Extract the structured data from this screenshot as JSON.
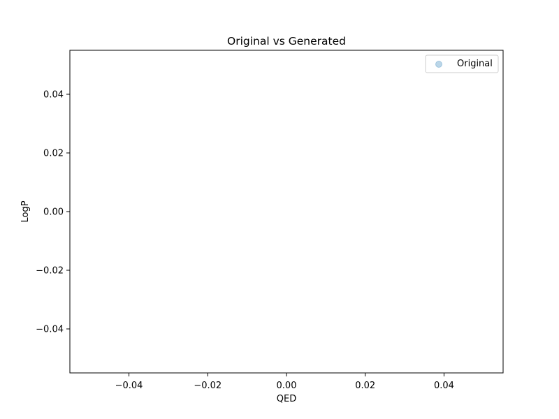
{
  "chart_data": {
    "type": "scatter",
    "title": "Original vs Generated",
    "xlabel": "QED",
    "ylabel": "LogP",
    "xlim": [
      -0.055,
      0.055
    ],
    "ylim": [
      -0.055,
      0.055
    ],
    "xticks": [
      "−0.04",
      "−0.02",
      "0.00",
      "0.02",
      "0.04"
    ],
    "xtick_values": [
      -0.04,
      -0.02,
      0.0,
      0.02,
      0.04
    ],
    "yticks": [
      "−0.04",
      "−0.02",
      "0.00",
      "0.02",
      "0.04"
    ],
    "ytick_values": [
      -0.04,
      -0.02,
      0.0,
      0.02,
      0.04
    ],
    "grid": false,
    "legend_position": "top-right",
    "series": [
      {
        "name": "Original",
        "color": "#1f77b4",
        "alpha": 0.3,
        "points": []
      }
    ]
  }
}
